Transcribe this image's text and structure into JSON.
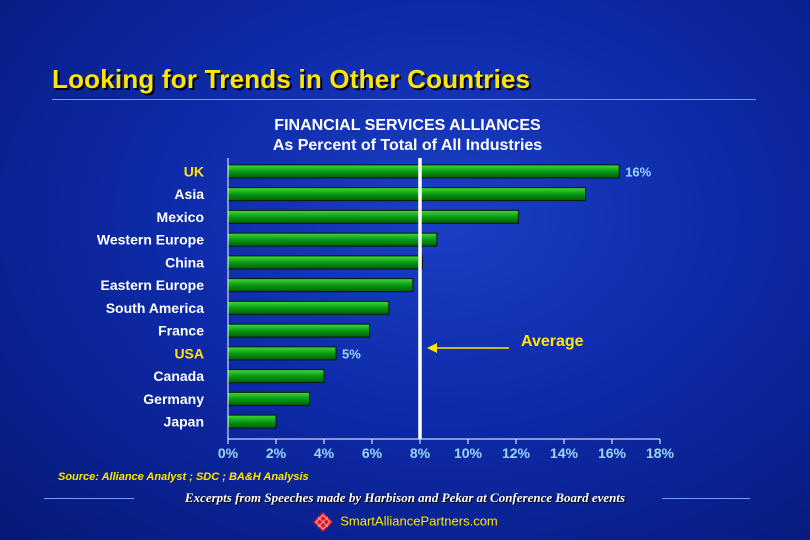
{
  "slide": {
    "title": "Looking for Trends in Other Countries",
    "source": "Source: Alliance Analyst ; SDC ; BA&H Analysis",
    "footer": "Excerpts from Speeches made by Harbison and Pekar at Conference Board events",
    "website": "SmartAlliancePartners.com"
  },
  "colors": {
    "title": "#ffe600",
    "highlight_label": "#ffe600",
    "bar": "#0a9a14",
    "value_label": "#9ad8ff",
    "average_line": "#ffffff",
    "annotation": "#ffe600"
  },
  "chart_data": {
    "type": "bar",
    "orientation": "horizontal",
    "title": "FINANCIAL SERVICES ALLIANCES",
    "subtitle": "As Percent of Total of All Industries",
    "categories": [
      "UK",
      "Asia",
      "Mexico",
      "Western Europe",
      "China",
      "Eastern Europe",
      "South America",
      "France",
      "USA",
      "Canada",
      "Germany",
      "Japan"
    ],
    "values": [
      16.3,
      14.9,
      12.1,
      8.7,
      8.1,
      7.7,
      6.7,
      5.9,
      4.5,
      4.0,
      3.4,
      2.0
    ],
    "highlighted": [
      "UK",
      "USA"
    ],
    "data_labels": [
      {
        "category": "UK",
        "text": "16%"
      },
      {
        "category": "USA",
        "text": "5%"
      }
    ],
    "xlim": [
      0,
      18
    ],
    "xticks": [
      "0%",
      "2%",
      "4%",
      "6%",
      "8%",
      "10%",
      "12%",
      "14%",
      "16%",
      "18%"
    ],
    "average": 8,
    "average_label": "Average",
    "grid": false,
    "legend": "none"
  }
}
